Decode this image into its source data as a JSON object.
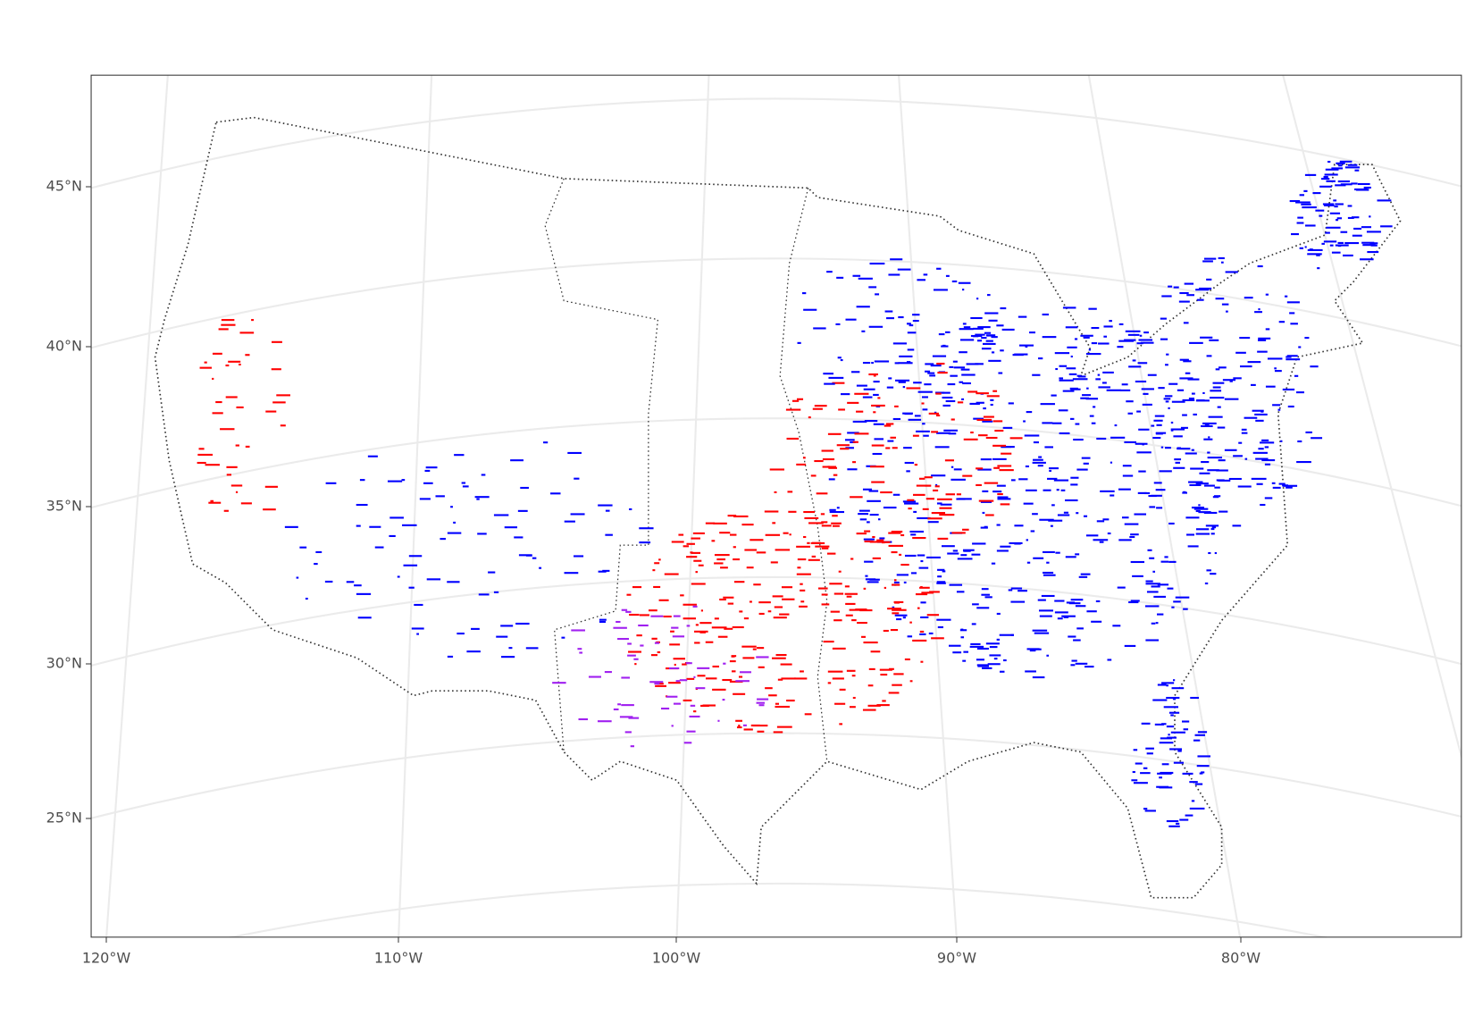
{
  "axes": {
    "y_labels": [
      "45°N",
      "40°N",
      "35°N",
      "30°N",
      "25°N"
    ],
    "x_labels": [
      "120°W",
      "110°W",
      "100°W",
      "90°W",
      "80°W"
    ]
  }
}
